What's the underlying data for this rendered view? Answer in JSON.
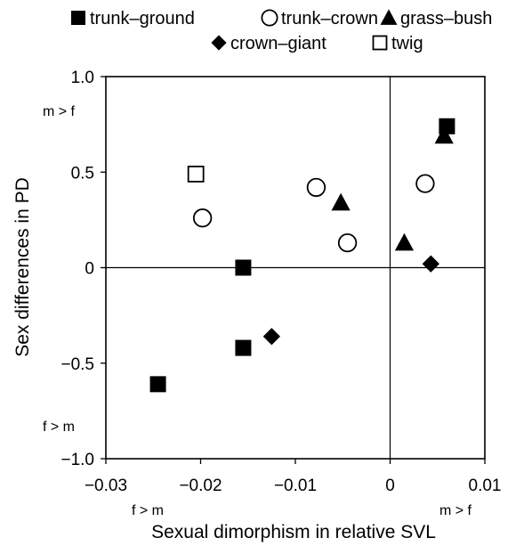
{
  "chart_data": {
    "type": "scatter",
    "title": "",
    "xlabel": "Sexual dimorphism in relative SVL",
    "ylabel": "Sex differences in PD",
    "xlim": [
      -0.03,
      0.01
    ],
    "ylim": [
      -1.0,
      1.0
    ],
    "x_ticks": [
      "−0.03",
      "−0.02",
      "−0.01",
      "0",
      "0.01"
    ],
    "x_tick_values": [
      -0.03,
      -0.02,
      -0.01,
      0,
      0.01
    ],
    "y_ticks": [
      "1.0",
      "0.5",
      "0",
      "−0.5",
      "−1.0"
    ],
    "y_tick_values": [
      1.0,
      0.5,
      0,
      -0.5,
      -1.0
    ],
    "reference_lines": {
      "x": 0,
      "y": 0
    },
    "grid": false,
    "legend_position": "top",
    "annotations": {
      "y_high": "m > f",
      "y_low": "f > m",
      "x_low": "f > m",
      "x_high": "m > f"
    },
    "series": [
      {
        "name": "trunk–ground",
        "marker": "square-filled",
        "points": [
          [
            -0.0155,
            0.0
          ],
          [
            -0.0155,
            -0.42
          ],
          [
            -0.0245,
            -0.61
          ],
          [
            0.006,
            0.74
          ]
        ]
      },
      {
        "name": "trunk–crown",
        "marker": "circle-open",
        "points": [
          [
            -0.0198,
            0.26
          ],
          [
            -0.0078,
            0.42
          ],
          [
            -0.0045,
            0.13
          ],
          [
            0.0037,
            0.44
          ]
        ]
      },
      {
        "name": "grass–bush",
        "marker": "triangle-filled",
        "points": [
          [
            -0.0052,
            0.34
          ],
          [
            0.0015,
            0.13
          ],
          [
            0.0057,
            0.69
          ]
        ]
      },
      {
        "name": "crown–giant",
        "marker": "diamond-filled",
        "points": [
          [
            -0.0125,
            -0.36
          ],
          [
            0.0043,
            0.02
          ]
        ]
      },
      {
        "name": "twig",
        "marker": "square-open",
        "points": [
          [
            -0.0205,
            0.49
          ]
        ]
      }
    ]
  }
}
